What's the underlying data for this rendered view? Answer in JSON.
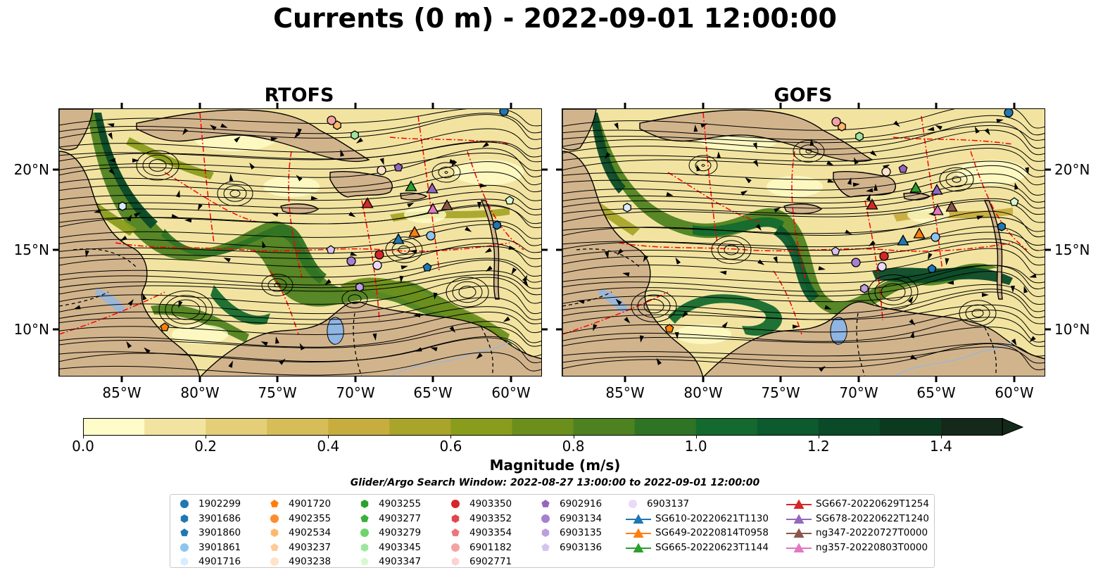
{
  "title": "Currents (0 m) - 2022-09-01 12:00:00",
  "panels": [
    {
      "title": "RTOFS"
    },
    {
      "title": "GOFS"
    }
  ],
  "axes": {
    "x_ticks": [
      "85°W",
      "80°W",
      "75°W",
      "70°W",
      "65°W",
      "60°W"
    ],
    "y_ticks": [
      "20°N",
      "15°N",
      "10°N"
    ]
  },
  "colorbar": {
    "label": "Magnitude (m/s)",
    "ticks": [
      "0.0",
      "0.2",
      "0.4",
      "0.6",
      "0.8",
      "1.0",
      "1.2",
      "1.4"
    ],
    "range": [
      0,
      1.5
    ],
    "extend": "max",
    "colors": [
      "#fefcc8",
      "#f2e4a0",
      "#e4cf78",
      "#d6bd58",
      "#c7ad3e",
      "#a8a52a",
      "#8a9c1c",
      "#6c8f1c",
      "#4e8220",
      "#2f7424",
      "#146a2e",
      "#0c5a2e",
      "#0a4a28",
      "#0c3a20",
      "#15291a"
    ]
  },
  "map_colors": {
    "land": "#d2b48c",
    "water_body": "#8fb5e2",
    "rivers": "#9cb7d6",
    "eez_lines": "#ff0000",
    "streamlines": "#000000"
  },
  "search_window": "Glider/Argo Search Window: 2022-08-27 13:00:00 to 2022-09-01 12:00:00",
  "legend": {
    "columns": [
      [
        {
          "label": "1902299",
          "marker": "circle",
          "color": "#1f77b4"
        },
        {
          "label": "3901686",
          "marker": "hexagon",
          "color": "#1f77b4"
        },
        {
          "label": "3901860",
          "marker": "pentagon",
          "color": "#1f77b4"
        },
        {
          "label": "3901861",
          "marker": "circle",
          "color": "#8ec4f0"
        },
        {
          "label": "4901716",
          "marker": "hexagon",
          "color": "#d8ecff"
        }
      ],
      [
        {
          "label": "4901720",
          "marker": "pentagon",
          "color": "#ff7f0e"
        },
        {
          "label": "4902355",
          "marker": "circle",
          "color": "#ff8c2e"
        },
        {
          "label": "4902534",
          "marker": "hexagon",
          "color": "#ffb86a"
        },
        {
          "label": "4903237",
          "marker": "pentagon",
          "color": "#ffc99a"
        },
        {
          "label": "4903238",
          "marker": "circle",
          "color": "#ffe3c8"
        }
      ],
      [
        {
          "label": "4903255",
          "marker": "hexagon",
          "color": "#2ca02c"
        },
        {
          "label": "4903277",
          "marker": "pentagon",
          "color": "#39b039"
        },
        {
          "label": "4903279",
          "marker": "circle",
          "color": "#6cd46c"
        },
        {
          "label": "4903345",
          "marker": "hexagon",
          "color": "#9ee69e"
        },
        {
          "label": "4903347",
          "marker": "pentagon",
          "color": "#d8f8d0"
        }
      ],
      [
        {
          "label": "4903350",
          "marker": "circle",
          "color": "#d62728"
        },
        {
          "label": "4903352",
          "marker": "hexagon",
          "color": "#e0474a"
        },
        {
          "label": "4903354",
          "marker": "pentagon",
          "color": "#ee7478"
        },
        {
          "label": "6901182",
          "marker": "circle",
          "color": "#f4a3a3"
        },
        {
          "label": "6902771",
          "marker": "hexagon",
          "color": "#fbd3d3"
        }
      ],
      [
        {
          "label": "6902916",
          "marker": "pentagon",
          "color": "#9467bd"
        },
        {
          "label": "6903134",
          "marker": "circle",
          "color": "#a57fd0"
        },
        {
          "label": "6903135",
          "marker": "hexagon",
          "color": "#bd9ee0"
        },
        {
          "label": "6903136",
          "marker": "pentagon",
          "color": "#d7c3f0"
        }
      ],
      [
        {
          "label": "6903137",
          "marker": "circle",
          "color": "#ead9f8"
        },
        {
          "label": "SG610-20220621T1130",
          "marker": "triangle-line",
          "color": "#1f77b4"
        },
        {
          "label": "SG649-20220814T0958",
          "marker": "triangle-line",
          "color": "#ff7f0e"
        },
        {
          "label": "SG665-20220623T1144",
          "marker": "triangle-line",
          "color": "#2ca02c"
        }
      ],
      [
        {
          "label": "SG667-20220629T1254",
          "marker": "triangle-line",
          "color": "#d62728"
        },
        {
          "label": "SG678-20220622T1240",
          "marker": "triangle-line",
          "color": "#9467bd"
        },
        {
          "label": "ng347-20220727T0000",
          "marker": "triangle-line",
          "color": "#8c564b"
        },
        {
          "label": "ng357-20220803T0000",
          "marker": "triangle-line",
          "color": "#e377c2"
        }
      ]
    ]
  }
}
